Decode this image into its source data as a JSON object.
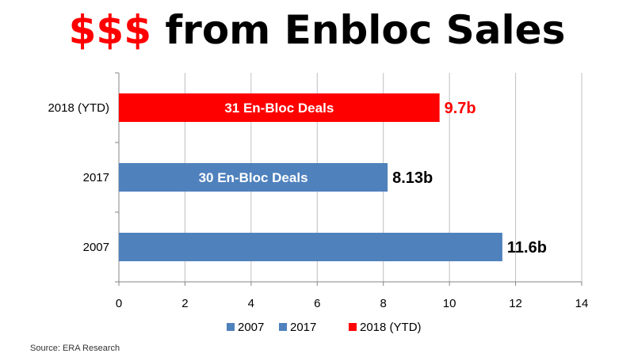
{
  "title": {
    "highlight": "$$$",
    "rest": " from Enbloc Sales"
  },
  "source": "Source: ERA Research",
  "colors": {
    "series_2007": "#4f81bd",
    "series_2017": "#4f81bd",
    "series_2018": "#ff0000",
    "grid": "#bfbfbf",
    "axis": "#868686"
  },
  "chart_data": {
    "type": "bar",
    "orientation": "horizontal",
    "categories": [
      "2007",
      "2017",
      "2018 (YTD)"
    ],
    "series": [
      {
        "name": "2007",
        "values": [
          11.6,
          null,
          null
        ]
      },
      {
        "name": "2017",
        "values": [
          null,
          8.13,
          null
        ]
      },
      {
        "name": "2018 (YTD)",
        "values": [
          null,
          null,
          9.7
        ]
      }
    ],
    "bars": [
      {
        "category": "2018 (YTD)",
        "value": 9.7,
        "value_label": "9.7b",
        "inner_label": "31 En-Bloc Deals",
        "color": "#ff0000",
        "value_label_color": "#ff0000"
      },
      {
        "category": "2017",
        "value": 8.13,
        "value_label": "8.13b",
        "inner_label": "30 En-Bloc Deals",
        "color": "#4f81bd",
        "value_label_color": "#000000"
      },
      {
        "category": "2007",
        "value": 11.6,
        "value_label": "11.6b",
        "inner_label": "",
        "color": "#4f81bd",
        "value_label_color": "#000000"
      }
    ],
    "xlim": [
      0,
      14
    ],
    "xticks": [
      "0",
      "2",
      "4",
      "6",
      "8",
      "10",
      "12",
      "14"
    ],
    "grid": true,
    "legend": {
      "position": "bottom",
      "items": [
        {
          "label": "2007",
          "color": "#4f81bd"
        },
        {
          "label": "2017",
          "color": "#4f81bd"
        },
        {
          "label": "2018 (YTD)",
          "color": "#ff0000"
        }
      ]
    }
  }
}
